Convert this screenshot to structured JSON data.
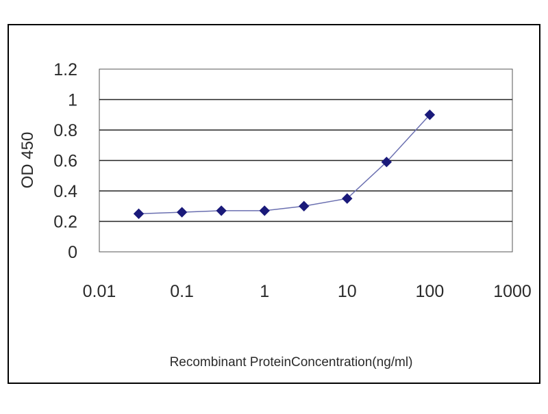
{
  "chart_data": {
    "type": "line",
    "title": "",
    "xlabel": "Recombinant ProteinConcentration(ng/ml)",
    "ylabel": "OD 450",
    "x_scale": "log",
    "xlim": [
      0.01,
      1000
    ],
    "ylim": [
      0,
      1.2
    ],
    "x_ticks": [
      0.01,
      0.1,
      1,
      10,
      100,
      1000
    ],
    "x_tick_labels": [
      "0.01",
      "0.1",
      "1",
      "10",
      "100",
      "1000"
    ],
    "y_ticks": [
      0,
      0.2,
      0.4,
      0.6,
      0.8,
      1,
      1.2
    ],
    "y_tick_labels": [
      "0",
      "0.2",
      "0.4",
      "0.6",
      "0.8",
      "1",
      "1.2"
    ],
    "grid": "horizontal",
    "legend": "none",
    "series": [
      {
        "marker": "diamond",
        "color": "#1a1a7a",
        "x": [
          0.03,
          0.1,
          0.3,
          1,
          3,
          10,
          30,
          100
        ],
        "y": [
          0.25,
          0.26,
          0.27,
          0.27,
          0.3,
          0.35,
          0.59,
          0.9
        ]
      }
    ]
  }
}
